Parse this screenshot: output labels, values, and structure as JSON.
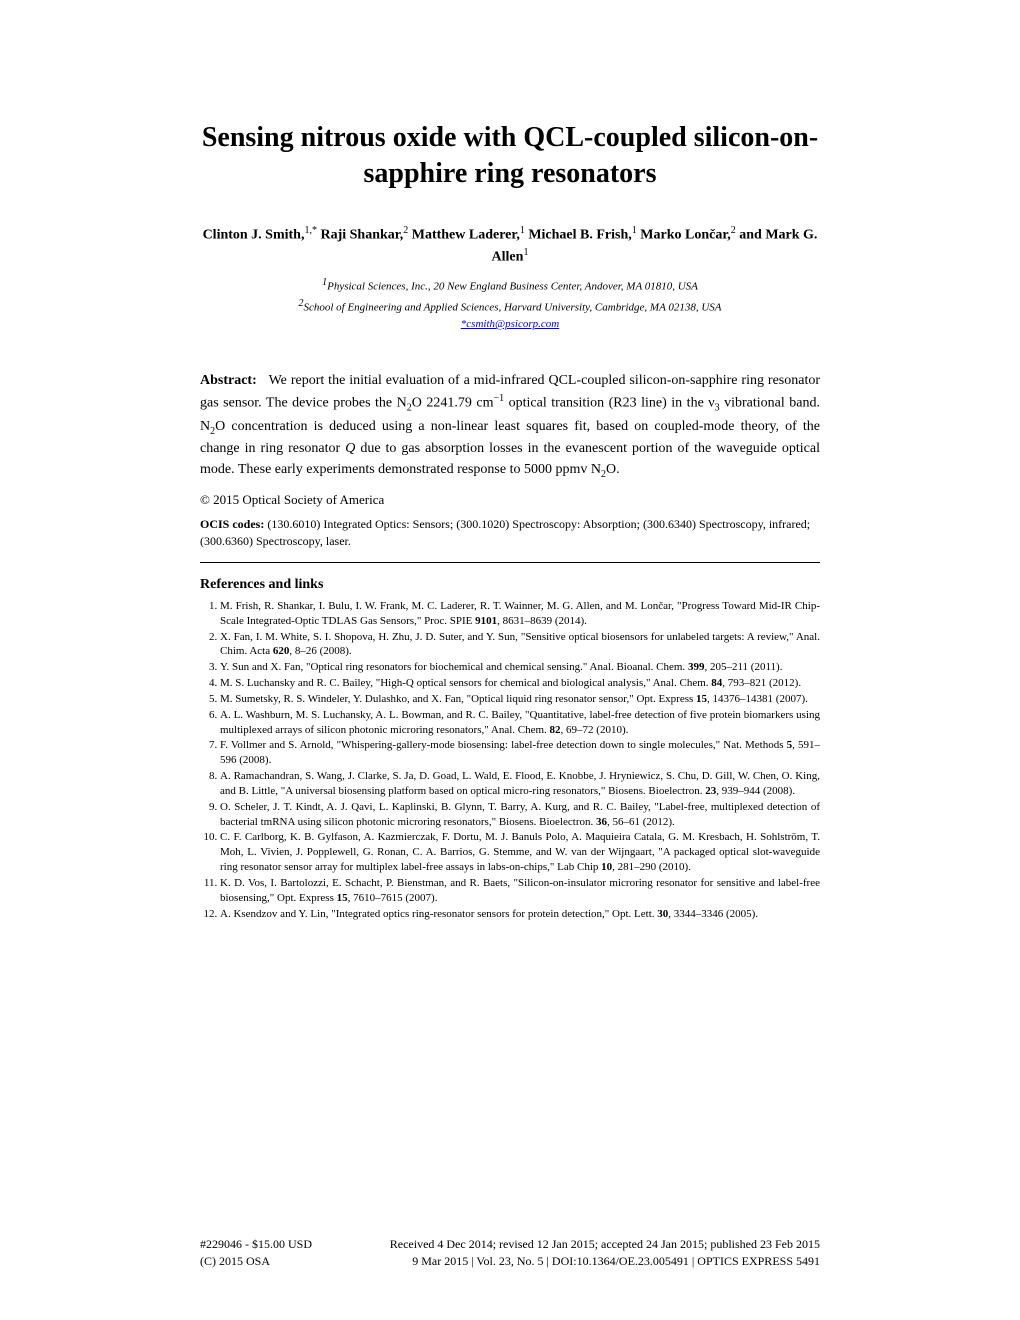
{
  "title": "Sensing nitrous oxide with QCL-coupled silicon-on-sapphire ring resonators",
  "authors_html": "Clinton J. Smith,<span class=\"sup\">1,*</span> Raji Shankar,<span class=\"sup\">2</span> Matthew Laderer,<span class=\"sup\">1</span> Michael B. Frish,<span class=\"sup\">1</span> Marko Lončar,<span class=\"sup\">2</span> and Mark G. Allen<span class=\"sup\">1</span>",
  "affiliations": [
    "<span class=\"sup\">1</span>Physical Sciences, Inc., 20 New England Business Center, Andover, MA 01810, USA",
    "<span class=\"sup\">2</span>School of Engineering and Applied Sciences, Harvard University, Cambridge, MA 02138, USA"
  ],
  "email_label": "*csmith@psicorp.com",
  "abstract_html": "<b>Abstract:</b>&nbsp;&nbsp;&nbsp;We report the initial evaluation of a mid-infrared QCL-coupled silicon-on-sapphire ring resonator gas sensor. The device probes the N<span class=\"sub\">2</span>O 2241.79 cm<span class=\"sup\">−1</span> optical transition (R23 line) in the ν<span class=\"sub\">3</span> vibrational band. N<span class=\"sub\">2</span>O concentration is deduced using a non-linear least squares fit, based on coupled-mode theory, of the change in ring resonator <i>Q</i> due to gas absorption losses in the evanescent portion of the waveguide optical mode. These early experiments demonstrated response to 5000 ppmv N<span class=\"sub\">2</span>O.",
  "copyright": "© 2015 Optical Society of America",
  "ocis_html": "<b>OCIS codes:</b> (130.6010) Integrated Optics: Sensors; (300.1020) Spectroscopy: Absorption; (300.6340) Spectroscopy, infrared; (300.6360) Spectroscopy, laser.",
  "refs_header": "References and links",
  "references": [
    "M. Frish, R. Shankar, I. Bulu, I. W. Frank, M. C. Laderer, R. T. Wainner, M. G. Allen, and M. Lončar, \"Progress Toward Mid-IR Chip-Scale Integrated-Optic TDLAS Gas Sensors,\" Proc. SPIE <b>9101</b>, 8631–8639 (2014).",
    "X. Fan, I. M. White, S. I. Shopova, H. Zhu, J. D. Suter, and Y. Sun, \"Sensitive optical biosensors for unlabeled targets: A review,\" Anal. Chim. Acta <b>620</b>, 8–26 (2008).",
    "Y. Sun and X. Fan, \"Optical ring resonators for biochemical and chemical sensing.\" Anal. Bioanal. Chem. <b>399</b>, 205–211 (2011).",
    "M. S. Luchansky and R. C. Bailey, \"High-Q optical sensors for chemical and biological analysis,\" Anal. Chem. <b>84</b>, 793–821 (2012).",
    "M. Sumetsky, R. S. Windeler, Y. Dulashko, and X. Fan, \"Optical liquid ring resonator sensor,\" Opt. Express <b>15</b>, 14376–14381 (2007).",
    "A. L. Washburn, M. S. Luchansky, A. L. Bowman, and R. C. Bailey, \"Quantitative, label-free detection of five protein biomarkers using multiplexed arrays of silicon photonic microring resonators,\" Anal. Chem. <b>82</b>, 69–72 (2010).",
    "F. Vollmer and S. Arnold, \"Whispering-gallery-mode biosensing: label-free detection down to single molecules,\" Nat. Methods <b>5</b>, 591–596 (2008).",
    "A. Ramachandran, S. Wang, J. Clarke, S. Ja, D. Goad, L. Wald, E. Flood, E. Knobbe, J. Hryniewicz, S. Chu, D. Gill, W. Chen, O. King, and B. Little, \"A universal biosensing platform based on optical micro-ring resonators,\" Biosens. Bioelectron. <b>23</b>, 939–944 (2008).",
    "O. Scheler, J. T. Kindt, A. J. Qavi, L. Kaplinski, B. Glynn, T. Barry, A. Kurg, and R. C. Bailey, \"Label-free, multiplexed detection of bacterial tmRNA using silicon photonic microring resonators,\" Biosens. Bioelectron. <b>36</b>, 56–61 (2012).",
    "C. F. Carlborg, K. B. Gylfason, A. Kazmierczak, F. Dortu, M. J. Banuls Polo, A. Maquieira Catala, G. M. Kresbach, H. Sohlström, T. Moh, L. Vivien, J. Popplewell, G. Ronan, C. A. Barrios, G. Stemme, and W. van der Wijngaart, \"A packaged optical slot-waveguide ring resonator sensor array for multiplex label-free assays in labs-on-chips,\" Lab Chip <b>10</b>, 281–290 (2010).",
    "K. D. Vos, I. Bartolozzi, E. Schacht, P. Bienstman, and R. Baets, \"Silicon-on-insulator microring resonator for sensitive and label-free biosensing,\" Opt. Express <b>15</b>, 7610–7615 (2007).",
    "A. Ksendzov and Y. Lin, \"Integrated optics ring-resonator sensors for protein detection,\" Opt. Lett. <b>30</b>, 3344–3346 (2005)."
  ],
  "footer": {
    "left1": "#229046 - $15.00 USD",
    "right1": "Received 4 Dec 2014; revised 12 Jan 2015; accepted 24 Jan 2015; published 23 Feb 2015",
    "left2": "(C) 2015 OSA",
    "right2": "9 Mar 2015 | Vol. 23, No. 5 | DOI:10.1364/OE.23.005491 | OPTICS EXPRESS 5491"
  }
}
